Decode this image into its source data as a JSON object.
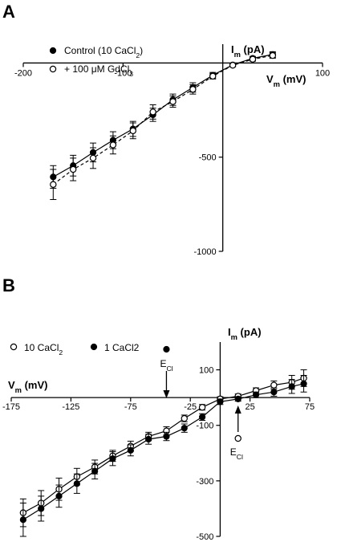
{
  "chart_data": [
    {
      "panel_label": "A",
      "type": "line",
      "xlabel": "V",
      "xlabel_sub": "m",
      "xlabel_unit": " (mV)",
      "ylabel": "I",
      "ylabel_sub": "m",
      "ylabel_unit": " (pA)",
      "xlim": [
        -200,
        100
      ],
      "ylim": [
        -1000,
        100
      ],
      "xticks": [
        -200,
        -100,
        100
      ],
      "yticks": [
        -500,
        -1000
      ],
      "legend_position": "top-left",
      "series": [
        {
          "name": "Control (10 CaCl",
          "name_sub": "2",
          "name_tail": ")",
          "marker": "filled-circle",
          "line": "solid",
          "x": [
            -170,
            -150,
            -130,
            -110,
            -90,
            -70,
            -50,
            -30,
            -10,
            10,
            30,
            50
          ],
          "y": [
            -605,
            -545,
            -475,
            -410,
            -350,
            -275,
            -195,
            -130,
            -65,
            -10,
            25,
            45
          ],
          "err": [
            60,
            55,
            50,
            45,
            40,
            35,
            30,
            25,
            15,
            8,
            10,
            15
          ]
        },
        {
          "name": "+ 100 μM GdCl",
          "name_sub": "3",
          "name_tail": "",
          "marker": "open-circle",
          "line": "dashed",
          "x": [
            -170,
            -150,
            -130,
            -110,
            -90,
            -70,
            -50,
            -30,
            -10,
            10,
            30,
            50
          ],
          "y": [
            -645,
            -565,
            -505,
            -435,
            -360,
            -260,
            -205,
            -140,
            -70,
            -12,
            20,
            40
          ],
          "err": [
            80,
            60,
            55,
            48,
            42,
            38,
            30,
            25,
            15,
            8,
            10,
            15
          ]
        }
      ]
    },
    {
      "panel_label": "B",
      "type": "line",
      "xlabel": "V",
      "xlabel_sub": "m",
      "xlabel_unit": " (mV)",
      "ylabel": "I",
      "ylabel_sub": "m",
      "ylabel_unit": " (pA)",
      "xlim": [
        -175,
        75
      ],
      "ylim": [
        -500,
        200
      ],
      "xticks": [
        -175,
        -125,
        -75,
        -25,
        25,
        75
      ],
      "yticks": [
        100,
        -100,
        -300,
        -500
      ],
      "legend_position": "top-left",
      "annotations": [
        {
          "symbol": "filled-circle",
          "label": "E",
          "label_sub": "Cl",
          "x": -45,
          "direction": "down"
        },
        {
          "symbol": "open-circle",
          "label": "E",
          "label_sub": "Cl",
          "x": 15,
          "direction": "up"
        }
      ],
      "series": [
        {
          "name": "10 CaCl",
          "name_sub": "2",
          "marker": "open-circle",
          "line": "solid",
          "x": [
            -165,
            -150,
            -135,
            -120,
            -105,
            -90,
            -75,
            -60,
            -45,
            -30,
            -15,
            0,
            15,
            30,
            45,
            60,
            70
          ],
          "y": [
            -415,
            -380,
            -330,
            -285,
            -250,
            -210,
            -175,
            -140,
            -120,
            -75,
            -35,
            -5,
            5,
            25,
            45,
            55,
            70
          ],
          "err": [
            50,
            45,
            40,
            30,
            25,
            20,
            18,
            15,
            15,
            12,
            10,
            8,
            8,
            10,
            15,
            25,
            30
          ]
        },
        {
          "name": "1 CaCl2",
          "name_sub": "",
          "marker": "filled-circle",
          "line": "solid",
          "x": [
            -165,
            -150,
            -135,
            -120,
            -105,
            -90,
            -75,
            -60,
            -45,
            -30,
            -15,
            0,
            15,
            30,
            45,
            60,
            70
          ],
          "y": [
            -440,
            -400,
            -355,
            -310,
            -265,
            -220,
            -190,
            -150,
            -140,
            -110,
            -70,
            -15,
            -5,
            10,
            20,
            40,
            50
          ],
          "err": [
            60,
            45,
            40,
            35,
            28,
            25,
            20,
            18,
            15,
            15,
            12,
            10,
            8,
            10,
            15,
            25,
            30
          ]
        }
      ]
    }
  ]
}
